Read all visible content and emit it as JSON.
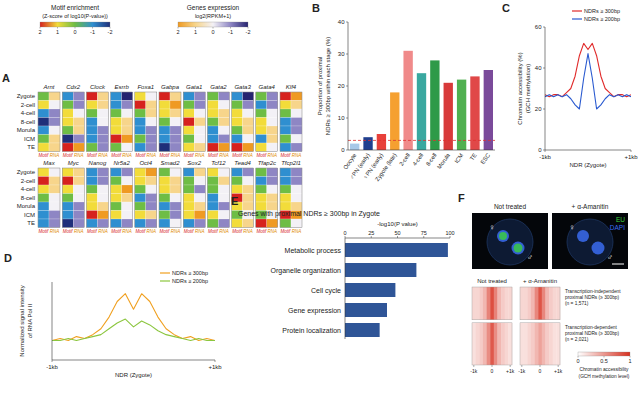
{
  "chart_data": [
    {
      "panel_label": "A",
      "type": "heatmap",
      "rows": [
        "Zygote",
        "2-cell",
        "4-cell",
        "8-cell",
        "Morula",
        "ICM",
        "TE"
      ],
      "col_labels": [
        "Motif",
        "RNA"
      ],
      "motif_colorbar": {
        "title": "Motif enrichment",
        "subtitle": "(Z-score of log10(P-value))",
        "range": [
          -2,
          2
        ],
        "ticks": [
          2,
          1,
          0,
          -1,
          -2
        ],
        "colors": [
          "#1f2f7a",
          "#2f8fd0",
          "#6ebd45",
          "#f2dc3a",
          "#d6221e"
        ]
      },
      "rna_colorbar": {
        "title": "Genes expression",
        "subtitle": "log2(RPKM+1)",
        "range": [
          -2,
          2
        ],
        "ticks": [
          2,
          1,
          0,
          -1,
          -2
        ],
        "colors": [
          "#262470",
          "#8e86c4",
          "#f3f1f6",
          "#f7d58b",
          "#ef9a22"
        ]
      },
      "groups": [
        [
          {
            "name": "Arnt",
            "motif": [
              0,
              1,
              -1,
              -2,
              -1,
              0,
              1
            ],
            "rna": [
              1,
              0,
              -1,
              -1,
              0,
              1,
              1
            ]
          },
          {
            "name": "Cdx2",
            "motif": [
              -1,
              0,
              1,
              1,
              0,
              -2,
              2
            ],
            "rna": [
              -1,
              -1,
              0,
              1,
              1,
              -1,
              2
            ]
          },
          {
            "name": "Clock",
            "motif": [
              2,
              1,
              0,
              -1,
              -1,
              -1,
              0
            ],
            "rna": [
              1,
              1,
              0,
              0,
              -1,
              -1,
              -1
            ]
          },
          {
            "name": "Esrrb",
            "motif": [
              -1,
              -1,
              0,
              1,
              1,
              2,
              0
            ],
            "rna": [
              -2,
              -1,
              0,
              1,
              1,
              2,
              0
            ]
          },
          {
            "name": "Foxa1",
            "motif": [
              1,
              2,
              0,
              -1,
              -1,
              0,
              -1
            ],
            "rna": [
              0,
              1,
              1,
              0,
              -1,
              -1,
              -1
            ]
          },
          {
            "name": "Gabpa",
            "motif": [
              2,
              1,
              1,
              0,
              -1,
              -1,
              -2
            ],
            "rna": [
              1,
              2,
              1,
              0,
              -1,
              -1,
              -1
            ]
          },
          {
            "name": "Gata1",
            "motif": [
              -1,
              0,
              1,
              2,
              1,
              0,
              1
            ],
            "rna": [
              -1,
              -1,
              0,
              1,
              0,
              0,
              1
            ]
          },
          {
            "name": "Gata2",
            "motif": [
              0,
              1,
              1,
              0,
              -1,
              -1,
              2
            ],
            "rna": [
              -1,
              0,
              1,
              1,
              0,
              -1,
              2
            ]
          },
          {
            "name": "Gata3",
            "motif": [
              -1,
              0,
              1,
              1,
              0,
              -1,
              2
            ],
            "rna": [
              -2,
              -1,
              0,
              1,
              1,
              0,
              2
            ]
          },
          {
            "name": "Gata4",
            "motif": [
              0,
              -1,
              0,
              1,
              1,
              -1,
              1
            ],
            "rna": [
              -1,
              -1,
              0,
              0,
              1,
              1,
              0
            ]
          },
          {
            "name": "Klf4",
            "motif": [
              2,
              1,
              0,
              -1,
              -1,
              0,
              -1
            ],
            "rna": [
              2,
              1,
              0,
              -1,
              -1,
              0,
              -1
            ]
          }
        ],
        [
          {
            "name": "Max",
            "motif": [
              1,
              2,
              1,
              0,
              -1,
              -1,
              -1
            ],
            "rna": [
              0,
              1,
              1,
              0,
              0,
              -1,
              -1
            ]
          },
          {
            "name": "Myc",
            "motif": [
              1,
              2,
              1,
              0,
              -1,
              -1,
              -2
            ],
            "rna": [
              1,
              1,
              0,
              0,
              -1,
              -1,
              -1
            ]
          },
          {
            "name": "Nanog",
            "motif": [
              -1,
              -1,
              0,
              1,
              1,
              2,
              -1
            ],
            "rna": [
              -1,
              -1,
              0,
              0,
              1,
              2,
              -1
            ]
          },
          {
            "name": "Nr5a2",
            "motif": [
              -1,
              0,
              1,
              1,
              0,
              1,
              -1
            ],
            "rna": [
              -1,
              0,
              2,
              1,
              0,
              0,
              -1
            ]
          },
          {
            "name": "Oct4",
            "motif": [
              1,
              1,
              0,
              -1,
              0,
              1,
              -1
            ],
            "rna": [
              2,
              1,
              0,
              -1,
              -1,
              1,
              -1
            ]
          },
          {
            "name": "Smad2",
            "motif": [
              0,
              1,
              1,
              0,
              -1,
              0,
              -1
            ],
            "rna": [
              0,
              1,
              1,
              0,
              -1,
              -1,
              0
            ]
          },
          {
            "name": "Sox2",
            "motif": [
              -1,
              0,
              0,
              1,
              1,
              1,
              -1
            ],
            "rna": [
              1,
              0,
              -1,
              0,
              1,
              2,
              -1
            ]
          },
          {
            "name": "Tcf12",
            "motif": [
              1,
              0,
              0,
              -1,
              -1,
              1,
              0
            ],
            "rna": [
              0,
              1,
              0,
              0,
              -1,
              0,
              -1
            ]
          },
          {
            "name": "Tead4",
            "motif": [
              -1,
              0,
              1,
              2,
              1,
              0,
              1
            ],
            "rna": [
              -1,
              0,
              1,
              1,
              1,
              0,
              1
            ]
          },
          {
            "name": "Tfap2c",
            "motif": [
              0,
              -1,
              0,
              1,
              1,
              0,
              2
            ],
            "rna": [
              -1,
              -1,
              0,
              1,
              1,
              0,
              2
            ]
          },
          {
            "name": "Tfcp2l1",
            "motif": [
              -1,
              -1,
              0,
              1,
              1,
              2,
              0
            ],
            "rna": [
              -1,
              -1,
              0,
              0,
              1,
              2,
              0
            ]
          }
        ]
      ]
    },
    {
      "panel_label": "B",
      "type": "bar",
      "y_label": [
        "Proportion of proximal",
        "NDRs ≥ 300bp within each stage (%)"
      ],
      "categories": [
        "Oocyte",
        "♂PN (early)",
        "♀PN (early)",
        "Zygote (late)",
        "2-cell",
        "4-cell",
        "8-cell",
        "Morula",
        "ICM",
        "TE",
        "ESC"
      ],
      "values": [
        2,
        4,
        5,
        18,
        31,
        24,
        28,
        21,
        22,
        23,
        25
      ],
      "colors": [
        "#a8c8e8",
        "#1f3f8f",
        "#e8403a",
        "#f5a030",
        "#f08a8a",
        "#3aa8a0",
        "#2e9a48",
        "#d83a3a",
        "#50b050",
        "#e04848",
        "#7a4a9a"
      ],
      "ylim": [
        0,
        40
      ],
      "yticks": [
        0,
        10,
        20,
        30,
        40
      ],
      "reference_line": 3
    },
    {
      "panel_label": "C",
      "type": "line",
      "y_label": [
        "Chromatin accessibility (%)",
        "(GCH methylation)"
      ],
      "x_label": "NDR (Zygote)",
      "x": [
        -1000,
        -900,
        -800,
        -700,
        -600,
        -500,
        -400,
        -300,
        -200,
        -100,
        0,
        100,
        200,
        300,
        400,
        500,
        600,
        700,
        800,
        900,
        1000
      ],
      "series": [
        {
          "name": "NDRs ≥ 300bp",
          "color": "#e02a2a",
          "values": [
            27,
            26,
            27,
            27,
            26,
            28,
            30,
            36,
            46,
            52,
            49,
            52,
            46,
            36,
            30,
            28,
            26,
            27,
            27,
            26,
            27
          ]
        },
        {
          "name": "NDRs ≥ 200bp",
          "color": "#2a5ad0",
          "values": [
            26,
            27,
            26,
            27,
            26,
            27,
            25,
            22,
            20,
            35,
            47,
            35,
            20,
            22,
            25,
            27,
            26,
            27,
            26,
            27,
            26
          ]
        }
      ],
      "xlim": [
        -1000,
        1000
      ],
      "xticks": [
        {
          "value": -1000,
          "label": "-1kb"
        },
        {
          "value": 1000,
          "label": "+1kb"
        }
      ],
      "ylim": [
        0,
        60
      ],
      "yticks": [
        0,
        20,
        40,
        60
      ],
      "legend": "top-right"
    },
    {
      "panel_label": "D",
      "type": "line",
      "y_label": [
        "Normalized signal intensity",
        "of RNA Pol II"
      ],
      "x_label": "NDR (Zygote)",
      "x": [
        -1000,
        -900,
        -800,
        -700,
        -600,
        -500,
        -400,
        -300,
        -200,
        -100,
        0,
        100,
        200,
        300,
        400,
        500,
        600,
        700,
        800,
        900,
        1000
      ],
      "series": [
        {
          "name": "NDRs ≥ 300bp",
          "color": "#f0a020",
          "values": [
            1.0,
            1.1,
            1.0,
            1.2,
            1.1,
            1.3,
            1.6,
            2.2,
            3.0,
            3.4,
            2.6,
            3.4,
            3.0,
            2.2,
            1.6,
            1.3,
            1.1,
            1.2,
            1.0,
            1.1,
            1.0
          ]
        },
        {
          "name": "NDRs ≥ 200bp",
          "color": "#8cc63f",
          "values": [
            1.0,
            1.0,
            1.1,
            1.0,
            1.1,
            1.2,
            1.3,
            1.6,
            1.9,
            2.1,
            1.7,
            2.0,
            1.8,
            1.5,
            1.3,
            1.2,
            1.1,
            1.0,
            1.1,
            1.0,
            1.0
          ]
        }
      ],
      "xlim": [
        -1000,
        1000
      ],
      "xticks": [
        {
          "value": -1000,
          "label": "-1kb"
        },
        {
          "value": 1000,
          "label": "+1kb"
        }
      ],
      "ylim": [
        0,
        4
      ],
      "tick_labels": "x",
      "legend": "top-right"
    },
    {
      "panel_label": "E",
      "type": "bar",
      "orientation": "horizontal",
      "title": "Genes with proximal NDRs ≥ 300bp in Zygote",
      "x_label": "-log10(P value)",
      "categories": [
        "Metabolic process",
        "Organelle organization",
        "Cell cycle",
        "Gene expression",
        "Protein localization"
      ],
      "values": [
        98,
        68,
        48,
        40,
        33
      ],
      "color": "#2f5597",
      "xlim": [
        0,
        100
      ],
      "xticks": [
        0,
        25,
        50,
        75,
        100
      ]
    },
    {
      "panel_label": "F",
      "type": "heatmap",
      "image_titles": [
        "Not treated",
        "+ α-Amanitin"
      ],
      "symbols": [
        "♀",
        "♂"
      ],
      "channels": [
        {
          "name": "EU",
          "color": "#3bd13b"
        },
        {
          "name": "DAPI",
          "color": "#3b6cf0"
        }
      ],
      "conditions": [
        "Not treated",
        "+ α-Amanitin"
      ],
      "x": [
        -1000,
        -800,
        -600,
        -400,
        -200,
        0,
        200,
        400,
        600,
        800,
        1000
      ],
      "groups": [
        {
          "label": [
            "Transcription-independent",
            "proximal NDRs (≥ 300bp)",
            "(n = 1,571)"
          ],
          "n": 1571,
          "values": [
            [
              0.2,
              0.2,
              0.25,
              0.35,
              0.6,
              0.85,
              0.6,
              0.35,
              0.25,
              0.2,
              0.2
            ],
            [
              0.2,
              0.2,
              0.25,
              0.35,
              0.58,
              0.82,
              0.58,
              0.35,
              0.25,
              0.2,
              0.2
            ]
          ]
        },
        {
          "label": [
            "Transcription-dependent",
            "proximal NDRs (≥ 300bp)",
            "(n = 2,021)"
          ],
          "n": 2021,
          "values": [
            [
              0.15,
              0.2,
              0.25,
              0.35,
              0.55,
              0.8,
              0.55,
              0.35,
              0.25,
              0.2,
              0.15
            ],
            [
              0.15,
              0.15,
              0.2,
              0.25,
              0.35,
              0.45,
              0.35,
              0.25,
              0.2,
              0.15,
              0.15
            ]
          ]
        }
      ],
      "xlim": [
        -1100,
        1100
      ],
      "xticks": [
        {
          "value": -1000,
          "label": "-1k"
        },
        0,
        {
          "value": 1000,
          "label": "+1k"
        }
      ],
      "colorbar": {
        "range": [
          0,
          1
        ],
        "ticks": [
          0,
          0.5,
          1
        ],
        "label": [
          "Chromatin accessibility",
          "(GCH methylation level)"
        ],
        "colors": [
          "#ffffff",
          "#d7301f"
        ]
      }
    }
  ]
}
